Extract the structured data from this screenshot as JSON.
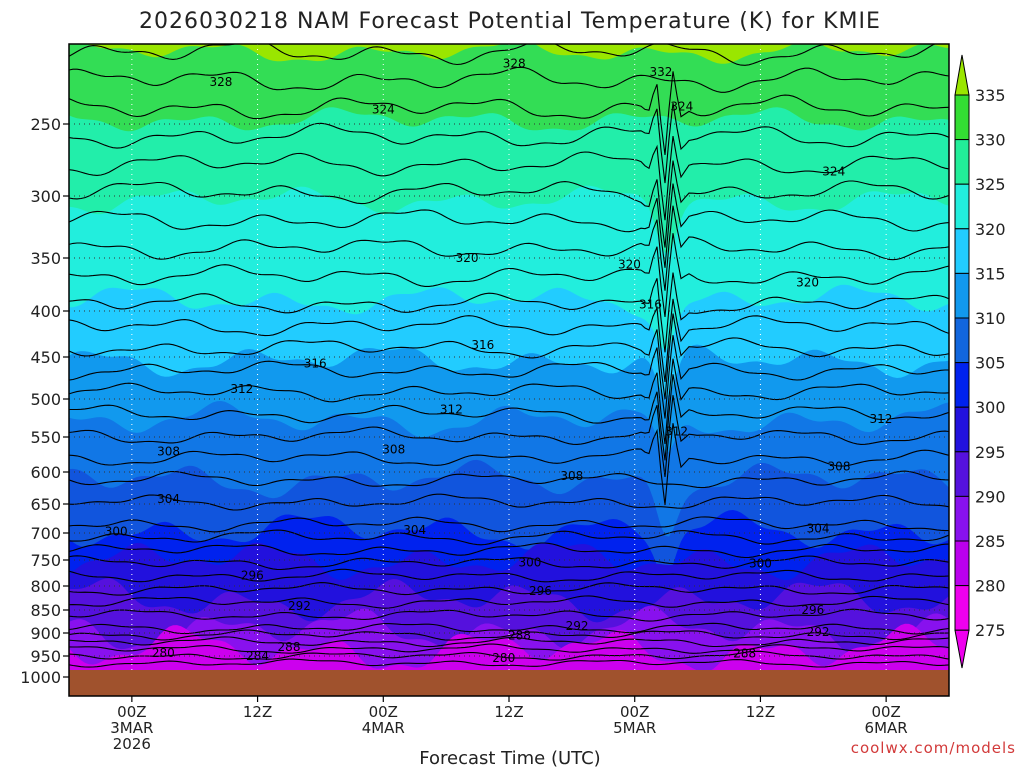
{
  "chart_data": {
    "type": "heatmap",
    "title": "2026030218 NAM Forecast Potential Temperature (K) for KMIE",
    "xlabel": "Forecast Time (UTC)",
    "ylabel": "",
    "y_ticks": [
      "250",
      "300",
      "350",
      "400",
      "450",
      "500",
      "550",
      "600",
      "650",
      "700",
      "750",
      "800",
      "850",
      "900",
      "950",
      "1000"
    ],
    "y_tick_values": [
      250,
      300,
      350,
      400,
      450,
      500,
      550,
      600,
      650,
      700,
      750,
      800,
      850,
      900,
      950,
      1000
    ],
    "y_range": [
      200,
      1000
    ],
    "x_ticks": [
      {
        "hours": 6,
        "line1": "00Z",
        "line2": "3MAR",
        "line3": "2026"
      },
      {
        "hours": 18,
        "line1": "12Z",
        "line2": "",
        "line3": ""
      },
      {
        "hours": 30,
        "line1": "00Z",
        "line2": "4MAR",
        "line3": ""
      },
      {
        "hours": 42,
        "line1": "12Z",
        "line2": "",
        "line3": ""
      },
      {
        "hours": 54,
        "line1": "00Z",
        "line2": "5MAR",
        "line3": ""
      },
      {
        "hours": 66,
        "line1": "12Z",
        "line2": "",
        "line3": ""
      },
      {
        "hours": 78,
        "line1": "00Z",
        "line2": "6MAR",
        "line3": ""
      }
    ],
    "x_range_hours": [
      0,
      84
    ],
    "colorbar": {
      "levels": [
        335,
        330,
        325,
        320,
        315,
        310,
        305,
        300,
        295,
        290,
        285,
        280,
        275
      ],
      "colors": [
        "#9ae600",
        "#33dd33",
        "#22ee99",
        "#22eedd",
        "#22ccff",
        "#1199ee",
        "#1166dd",
        "#0022ee",
        "#2211dd",
        "#5511dd",
        "#8811ee",
        "#bb00ee",
        "#ee00ee"
      ]
    },
    "contour_labels": [
      {
        "text": "328",
        "hours": 14.5,
        "p": 221
      },
      {
        "text": "328",
        "hours": 42.5,
        "p": 208
      },
      {
        "text": "332",
        "hours": 56.5,
        "p": 214
      },
      {
        "text": "324",
        "hours": 30,
        "p": 240
      },
      {
        "text": "324",
        "hours": 58.5,
        "p": 238
      },
      {
        "text": "324",
        "hours": 73,
        "p": 283
      },
      {
        "text": "320",
        "hours": 38,
        "p": 350
      },
      {
        "text": "320",
        "hours": 53.5,
        "p": 356
      },
      {
        "text": "320",
        "hours": 70.5,
        "p": 373
      },
      {
        "text": "316",
        "hours": 55.5,
        "p": 394
      },
      {
        "text": "316",
        "hours": 39.5,
        "p": 437
      },
      {
        "text": "316",
        "hours": 23.5,
        "p": 458
      },
      {
        "text": "312",
        "hours": 16.5,
        "p": 488
      },
      {
        "text": "312",
        "hours": 36.5,
        "p": 514
      },
      {
        "text": "312",
        "hours": 58,
        "p": 543
      },
      {
        "text": "312",
        "hours": 77.5,
        "p": 526
      },
      {
        "text": "308",
        "hours": 9.5,
        "p": 571
      },
      {
        "text": "308",
        "hours": 31,
        "p": 568
      },
      {
        "text": "308",
        "hours": 48,
        "p": 606
      },
      {
        "text": "308",
        "hours": 73.5,
        "p": 592
      },
      {
        "text": "304",
        "hours": 9.5,
        "p": 642
      },
      {
        "text": "304",
        "hours": 33,
        "p": 695
      },
      {
        "text": "304",
        "hours": 71.5,
        "p": 692
      },
      {
        "text": "300",
        "hours": 4.5,
        "p": 697
      },
      {
        "text": "300",
        "hours": 44,
        "p": 755
      },
      {
        "text": "300",
        "hours": 66,
        "p": 757
      },
      {
        "text": "296",
        "hours": 17.5,
        "p": 780
      },
      {
        "text": "296",
        "hours": 45,
        "p": 810
      },
      {
        "text": "296",
        "hours": 71,
        "p": 850
      },
      {
        "text": "292",
        "hours": 22,
        "p": 842
      },
      {
        "text": "292",
        "hours": 48.5,
        "p": 885
      },
      {
        "text": "292",
        "hours": 71.5,
        "p": 898
      },
      {
        "text": "288",
        "hours": 21,
        "p": 930
      },
      {
        "text": "288",
        "hours": 43,
        "p": 905
      },
      {
        "text": "288",
        "hours": 64.5,
        "p": 945
      },
      {
        "text": "280",
        "hours": 9,
        "p": 943
      },
      {
        "text": "284",
        "hours": 18,
        "p": 950
      },
      {
        "text": "280",
        "hours": 41.5,
        "p": 955
      }
    ]
  },
  "credit": "coolwx.com/models"
}
